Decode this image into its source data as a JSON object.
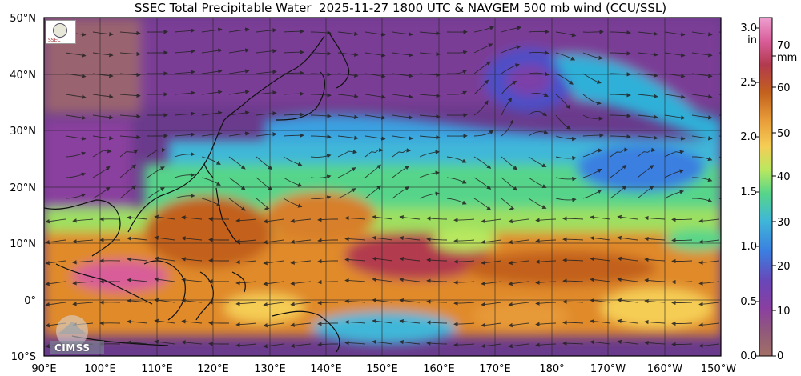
{
  "title": "SSEC Total Precipitable Water  2025-11-27 1800 UTC & NAVGEM 500 mb wind (CCU/SSL)",
  "map": {
    "lat_labels": [
      "50°N",
      "40°N",
      "30°N",
      "20°N",
      "10°N",
      "0°",
      "10°S"
    ],
    "lon_labels": [
      "90°E",
      "100°E",
      "110°E",
      "120°E",
      "130°E",
      "140°E",
      "150°E",
      "160°E",
      "170°E",
      "180°",
      "170°W",
      "160°W",
      "150°W"
    ]
  },
  "colorbar": {
    "unit_in": "in",
    "unit_mm": "mm",
    "in_ticks": [
      "3.0",
      "2.5",
      "2.0",
      "1.5",
      "1.0",
      "0.5",
      "0.0"
    ],
    "mm_ticks": [
      "70",
      "60",
      "50",
      "40",
      "30",
      "20",
      "10",
      "0"
    ],
    "colors": [
      "#ee9fd0",
      "#d85d99",
      "#b23a4e",
      "#c2601e",
      "#e79a38",
      "#f5cd55",
      "#b9e85f",
      "#56d58a",
      "#3fb7d8",
      "#3b7fe0",
      "#6a46b8",
      "#8a3fa0",
      "#915a7a",
      "#a27066"
    ]
  },
  "logos": {
    "cimss": "CIMSS"
  }
}
